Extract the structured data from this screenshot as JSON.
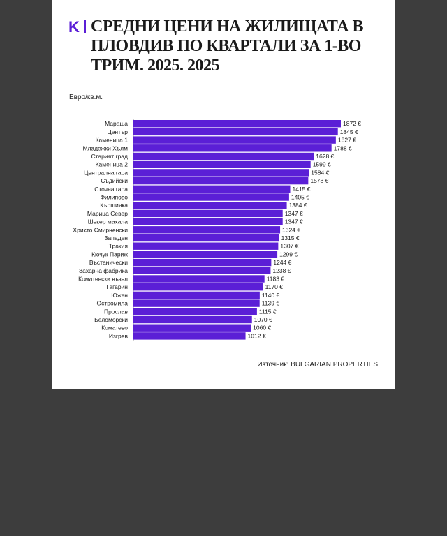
{
  "header": {
    "logo_letter": "K",
    "title": "СРЕДНИ ЦЕНИ НА ЖИЛИЩАТА В ПЛОВДИВ  ПО КВАРТАЛИ ЗА 1-ВО ТРИМ. 2025. 2025"
  },
  "unit_label": "Евро/кв.м.",
  "source": "Източник: BULGARIAN PROPERTIES",
  "colors": {
    "bar": "#5b1fd6",
    "logo": "#5b1fd6"
  },
  "chart_data": {
    "type": "bar",
    "orientation": "horizontal",
    "title": "СРЕДНИ ЦЕНИ НА ЖИЛИЩАТА В ПЛОВДИВ  ПО КВАРТАЛИ ЗА 1-ВО ТРИМ. 2025. 2025",
    "xlabel": "",
    "ylabel": "Евро/кв.м.",
    "value_suffix": " €",
    "xlim": [
      0,
      1872
    ],
    "categories": [
      "Мараша",
      "Център",
      "Каменица 1",
      "Младежки Хълм",
      "Старият град",
      "Каменица 2",
      "Централна гара",
      "Съдийски",
      "Сточна гара",
      "Филипово",
      "Кършияка",
      "Марица Север",
      "Шекер махала",
      "Христо Смирненски",
      "Западен",
      "Тракия",
      "Кючук Париж",
      "Въстанически",
      "Захарна фабрика",
      "Коматевски възел",
      "Гагарин",
      "Южен",
      "Остромила",
      "Прослав",
      "Беломорски",
      "Коматево",
      "Изгрев"
    ],
    "values": [
      1872,
      1845,
      1827,
      1788,
      1628,
      1599,
      1584,
      1578,
      1415,
      1405,
      1384,
      1347,
      1347,
      1324,
      1315,
      1307,
      1299,
      1244,
      1238,
      1183,
      1170,
      1140,
      1139,
      1115,
      1070,
      1060,
      1012
    ]
  }
}
